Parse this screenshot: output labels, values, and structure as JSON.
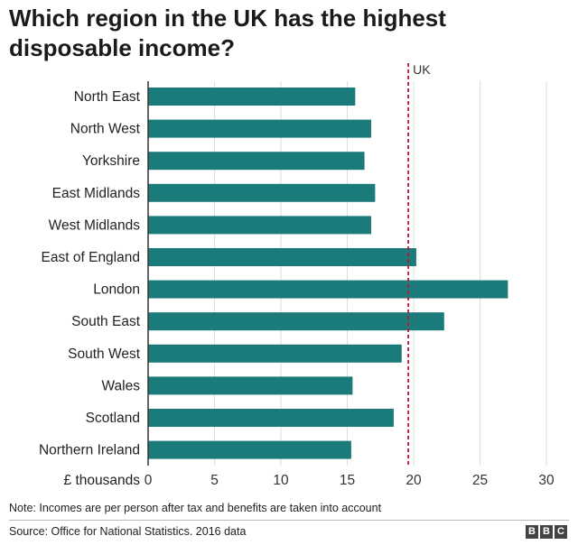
{
  "title": "Which region in the UK has the highest disposable income?",
  "chart_data": {
    "type": "bar",
    "orientation": "horizontal",
    "categories": [
      "North East",
      "North West",
      "Yorkshire",
      "East Midlands",
      "West Midlands",
      "East of England",
      "London",
      "South East",
      "South West",
      "Wales",
      "Scotland",
      "Northern Ireland"
    ],
    "values": [
      15.6,
      16.8,
      16.3,
      17.1,
      16.8,
      20.2,
      27.1,
      22.3,
      19.1,
      15.4,
      18.5,
      15.3
    ],
    "xlabel": "£ thousands",
    "xlim": [
      0,
      30
    ],
    "xticks": [
      "0",
      "5",
      "10",
      "15",
      "20",
      "25",
      "30"
    ],
    "reference_line": {
      "label": "UK",
      "value": 19.6,
      "style": "dashed",
      "color": "#c8102e"
    },
    "bar_color": "#1b7a7a",
    "grid": true
  },
  "note": "Note: Incomes are per person after tax and benefits are taken into account",
  "source": "Source: Office for National Statistics. 2016 data",
  "logo": {
    "letters": [
      "B",
      "B",
      "C"
    ]
  }
}
